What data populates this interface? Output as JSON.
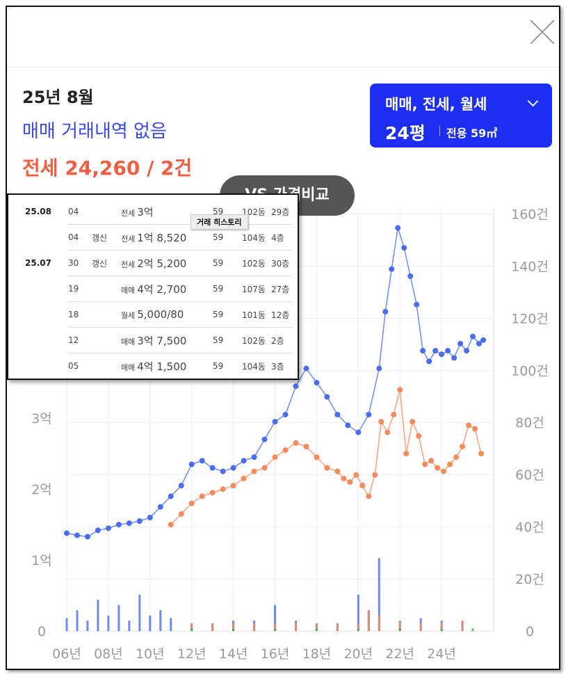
{
  "header": {
    "month": "25년 8월",
    "sale_status": "매매 거래내역 없음",
    "jeonse_summary": "전세 24,260 / 2건"
  },
  "type_selector": {
    "label": "매매, 전세, 월세",
    "size_pyeong": "24평",
    "size_area": "전용 59㎡"
  },
  "compare_button": "VS 가격비교",
  "history": {
    "tooltip": "거래 히스토리",
    "rows": [
      {
        "ym": "25.08",
        "day": "04",
        "renew": "",
        "kind": "전세",
        "price": "3억",
        "type": "jeonse",
        "area": "59",
        "dong": "102동",
        "floor": "29층"
      },
      {
        "ym": "",
        "day": "04",
        "renew": "갱신",
        "kind": "전세",
        "price": "1억 8,520",
        "type": "jeonse",
        "area": "59",
        "dong": "104동",
        "floor": "4층"
      },
      {
        "ym": "25.07",
        "day": "30",
        "renew": "갱신",
        "kind": "전세",
        "price": "2억 5,200",
        "type": "jeonse",
        "area": "59",
        "dong": "102동",
        "floor": "30층"
      },
      {
        "ym": "",
        "day": "19",
        "renew": "",
        "kind": "매매",
        "price": "4억 2,700",
        "type": "sale",
        "area": "59",
        "dong": "107동",
        "floor": "27층"
      },
      {
        "ym": "",
        "day": "18",
        "renew": "",
        "kind": "월세",
        "price": "5,000/80",
        "type": "monthly",
        "area": "59",
        "dong": "101동",
        "floor": "12층"
      },
      {
        "ym": "",
        "day": "12",
        "renew": "",
        "kind": "매매",
        "price": "3억 7,500",
        "type": "sale",
        "area": "59",
        "dong": "102동",
        "floor": "2층"
      },
      {
        "ym": "",
        "day": "05",
        "renew": "",
        "kind": "매매",
        "price": "4억 1,500",
        "type": "sale",
        "area": "59",
        "dong": "104동",
        "floor": "3층"
      }
    ]
  },
  "chart_data": {
    "type": "line",
    "x_unit": "year",
    "x_ticks": [
      "06년",
      "08년",
      "10년",
      "12년",
      "14년",
      "16년",
      "18년",
      "20년",
      "22년",
      "24년"
    ],
    "x_tick_years": [
      2006,
      2008,
      2010,
      2012,
      2014,
      2016,
      2018,
      2020,
      2022,
      2024
    ],
    "xlim": [
      2006,
      2026.5
    ],
    "y_left_ticks": [
      "0",
      "1억",
      "2억",
      "3억"
    ],
    "y_left_values": [
      0,
      1,
      2,
      3
    ],
    "ylim_left": [
      0,
      5.95
    ],
    "y_right_ticks": [
      "0",
      "20건",
      "40건",
      "60건",
      "80건",
      "100건",
      "120건",
      "140건",
      "160건"
    ],
    "y_right_values": [
      0,
      20,
      40,
      60,
      80,
      100,
      120,
      140,
      160
    ],
    "ylim_right": [
      0,
      162
    ],
    "colors": {
      "sale": "#4a6cf0",
      "jeonse": "#f58a5c",
      "monthly": "#3db03d",
      "grid": "#eeeeee"
    },
    "series": [
      {
        "key": "sale",
        "x": [
          2006.0,
          2006.5,
          2007.0,
          2007.5,
          2008.0,
          2008.5,
          2009.0,
          2009.5,
          2010.0,
          2010.5,
          2011.0,
          2011.5,
          2012.0,
          2012.5,
          2013.0,
          2013.5,
          2014.0,
          2014.5,
          2015.0,
          2015.5,
          2016.0,
          2016.5,
          2017.0,
          2017.5,
          2018.0,
          2018.5,
          2019.0,
          2019.5,
          2020.0,
          2020.5,
          2021.0,
          2021.3,
          2021.6,
          2021.9,
          2022.2,
          2022.5,
          2022.8,
          2023.1,
          2023.4,
          2023.7,
          2024.0,
          2024.3,
          2024.6,
          2024.9,
          2025.2,
          2025.5,
          2025.8,
          2026.0
        ],
        "values": [
          1.38,
          1.35,
          1.33,
          1.42,
          1.45,
          1.5,
          1.52,
          1.55,
          1.6,
          1.75,
          1.9,
          2.05,
          2.35,
          2.4,
          2.3,
          2.25,
          2.3,
          2.4,
          2.45,
          2.7,
          2.95,
          3.05,
          3.45,
          3.7,
          3.5,
          3.3,
          3.05,
          2.9,
          2.8,
          3.05,
          3.7,
          4.5,
          5.1,
          5.68,
          5.4,
          5.0,
          4.6,
          3.95,
          3.8,
          3.95,
          3.9,
          3.95,
          3.85,
          4.05,
          3.95,
          4.15,
          4.05,
          4.1
        ]
      },
      {
        "key": "jeonse",
        "x": [
          2011.0,
          2011.5,
          2012.0,
          2012.5,
          2013.0,
          2013.5,
          2014.0,
          2014.5,
          2015.0,
          2015.5,
          2016.0,
          2016.5,
          2017.0,
          2017.5,
          2018.0,
          2018.5,
          2019.0,
          2019.3,
          2019.6,
          2019.9,
          2020.2,
          2020.5,
          2020.8,
          2021.1,
          2021.4,
          2021.7,
          2022.0,
          2022.3,
          2022.6,
          2022.9,
          2023.2,
          2023.5,
          2023.8,
          2024.1,
          2024.4,
          2024.7,
          2025.0,
          2025.3,
          2025.6,
          2025.9
        ],
        "values": [
          1.5,
          1.65,
          1.8,
          1.9,
          1.95,
          2.0,
          2.05,
          2.15,
          2.25,
          2.3,
          2.45,
          2.55,
          2.65,
          2.6,
          2.45,
          2.3,
          2.25,
          2.15,
          2.1,
          2.2,
          2.05,
          1.9,
          2.2,
          2.95,
          2.8,
          3.05,
          3.4,
          2.5,
          2.95,
          2.75,
          2.35,
          2.4,
          2.3,
          2.25,
          2.35,
          2.45,
          2.6,
          2.9,
          2.85,
          2.5
        ]
      }
    ],
    "volume_series": [
      {
        "key": "sale",
        "x": [
          2006.0,
          2006.5,
          2007.0,
          2007.5,
          2008.0,
          2008.5,
          2009.0,
          2009.5,
          2010.0,
          2010.5,
          2011.0,
          2012.0,
          2013.0,
          2014.0,
          2015.0,
          2016.0,
          2017.0,
          2018.0,
          2019.0,
          2020.0,
          2020.5,
          2021.0,
          2022.0,
          2023.0,
          2024.0,
          2025.0
        ],
        "values": [
          5,
          8,
          4,
          12,
          6,
          10,
          4,
          14,
          6,
          8,
          5,
          3,
          3,
          4,
          4,
          10,
          4,
          3,
          3,
          14,
          8,
          28,
          4,
          5,
          4,
          4
        ]
      },
      {
        "key": "jeonse",
        "x": [
          2012.0,
          2013.0,
          2014.0,
          2015.0,
          2016.0,
          2017.0,
          2018.0,
          2019.0,
          2020.0,
          2020.5,
          2021.0,
          2022.0,
          2023.0,
          2024.0,
          2025.0
        ],
        "values": [
          3,
          3,
          3,
          3,
          3,
          3,
          3,
          3,
          3,
          8,
          6,
          4,
          3,
          3,
          4
        ]
      },
      {
        "key": "monthly",
        "x": [
          2012.0,
          2014.0,
          2016.0,
          2018.0,
          2020.0,
          2022.0,
          2024.0,
          2025.5
        ],
        "values": [
          1,
          1,
          1,
          1,
          1,
          1,
          1,
          1
        ]
      }
    ]
  }
}
